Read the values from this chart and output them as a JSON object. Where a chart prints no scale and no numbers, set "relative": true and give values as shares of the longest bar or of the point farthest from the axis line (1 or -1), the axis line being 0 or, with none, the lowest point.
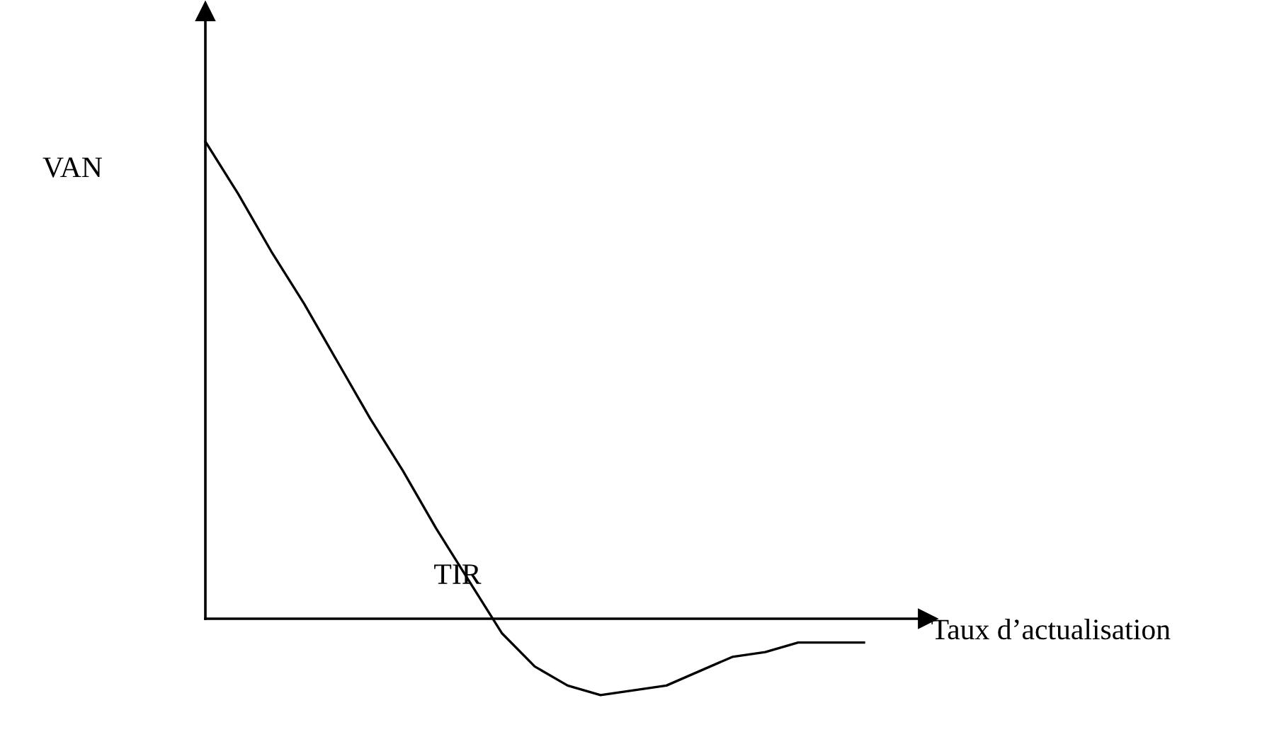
{
  "chart_data": {
    "type": "line",
    "relative": true,
    "xlabel": "Taux d’actualisation",
    "ylabel": "VAN",
    "annotations": [
      "TIR"
    ],
    "categories": [
      null,
      null,
      null,
      null,
      null,
      null,
      null,
      null,
      null,
      null,
      null,
      null,
      null,
      null,
      null,
      null,
      null,
      null,
      null,
      null,
      null
    ],
    "series": [
      {
        "color": "#000000",
        "values": [
          1,
          0.89,
          0.77,
          0.66,
          0.54,
          0.42,
          0.31,
          0.19,
          0.08,
          -0.03,
          -0.1,
          -0.14,
          -0.16,
          -0.15,
          -0.14,
          -0.11,
          -0.08,
          -0.07,
          -0.05,
          -0.05,
          -0.05
        ]
      }
    ],
    "legend": false,
    "marker": "none",
    "line_style": "solid"
  }
}
